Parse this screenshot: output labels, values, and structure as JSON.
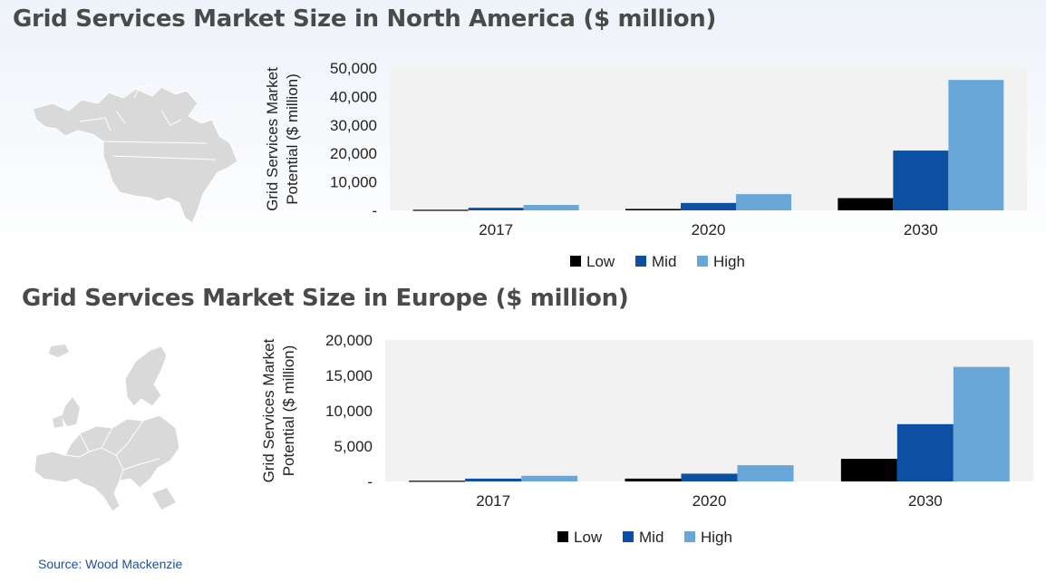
{
  "source": "Source: Wood Mackenzie",
  "colors": {
    "low": "#000000",
    "mid": "#0c4fa3",
    "high": "#6aa7d9",
    "plot_bg": "#f2f2f2"
  },
  "chart_data": [
    {
      "type": "bar",
      "title": "Grid Services Market Size in North America ($ million)",
      "ylabel": "Grid Services Market Potential ($ million)",
      "categories": [
        "2017",
        "2020",
        "2030"
      ],
      "series": [
        {
          "name": "Low",
          "values": [
            200,
            500,
            4300
          ]
        },
        {
          "name": "Mid",
          "values": [
            900,
            2600,
            21000
          ]
        },
        {
          "name": "High",
          "values": [
            1900,
            5700,
            45800
          ]
        }
      ],
      "ylim": [
        0,
        50000
      ],
      "yticks": [
        "-",
        "10,000",
        "20,000",
        "30,000",
        "40,000",
        "50,000"
      ],
      "legend": "bottom",
      "grid": false
    },
    {
      "type": "bar",
      "title": "Grid Services Market Size in Europe ($ million)",
      "ylabel": "Grid Services Market Potential ($ million)",
      "categories": [
        "2017",
        "2020",
        "2030"
      ],
      "series": [
        {
          "name": "Low",
          "values": [
            100,
            400,
            3200
          ]
        },
        {
          "name": "Mid",
          "values": [
            400,
            1100,
            8100
          ]
        },
        {
          "name": "High",
          "values": [
            800,
            2300,
            16200
          ]
        }
      ],
      "ylim": [
        0,
        20000
      ],
      "yticks": [
        "-",
        "5,000",
        "10,000",
        "15,000",
        "20,000"
      ],
      "legend": "bottom",
      "grid": false
    }
  ]
}
